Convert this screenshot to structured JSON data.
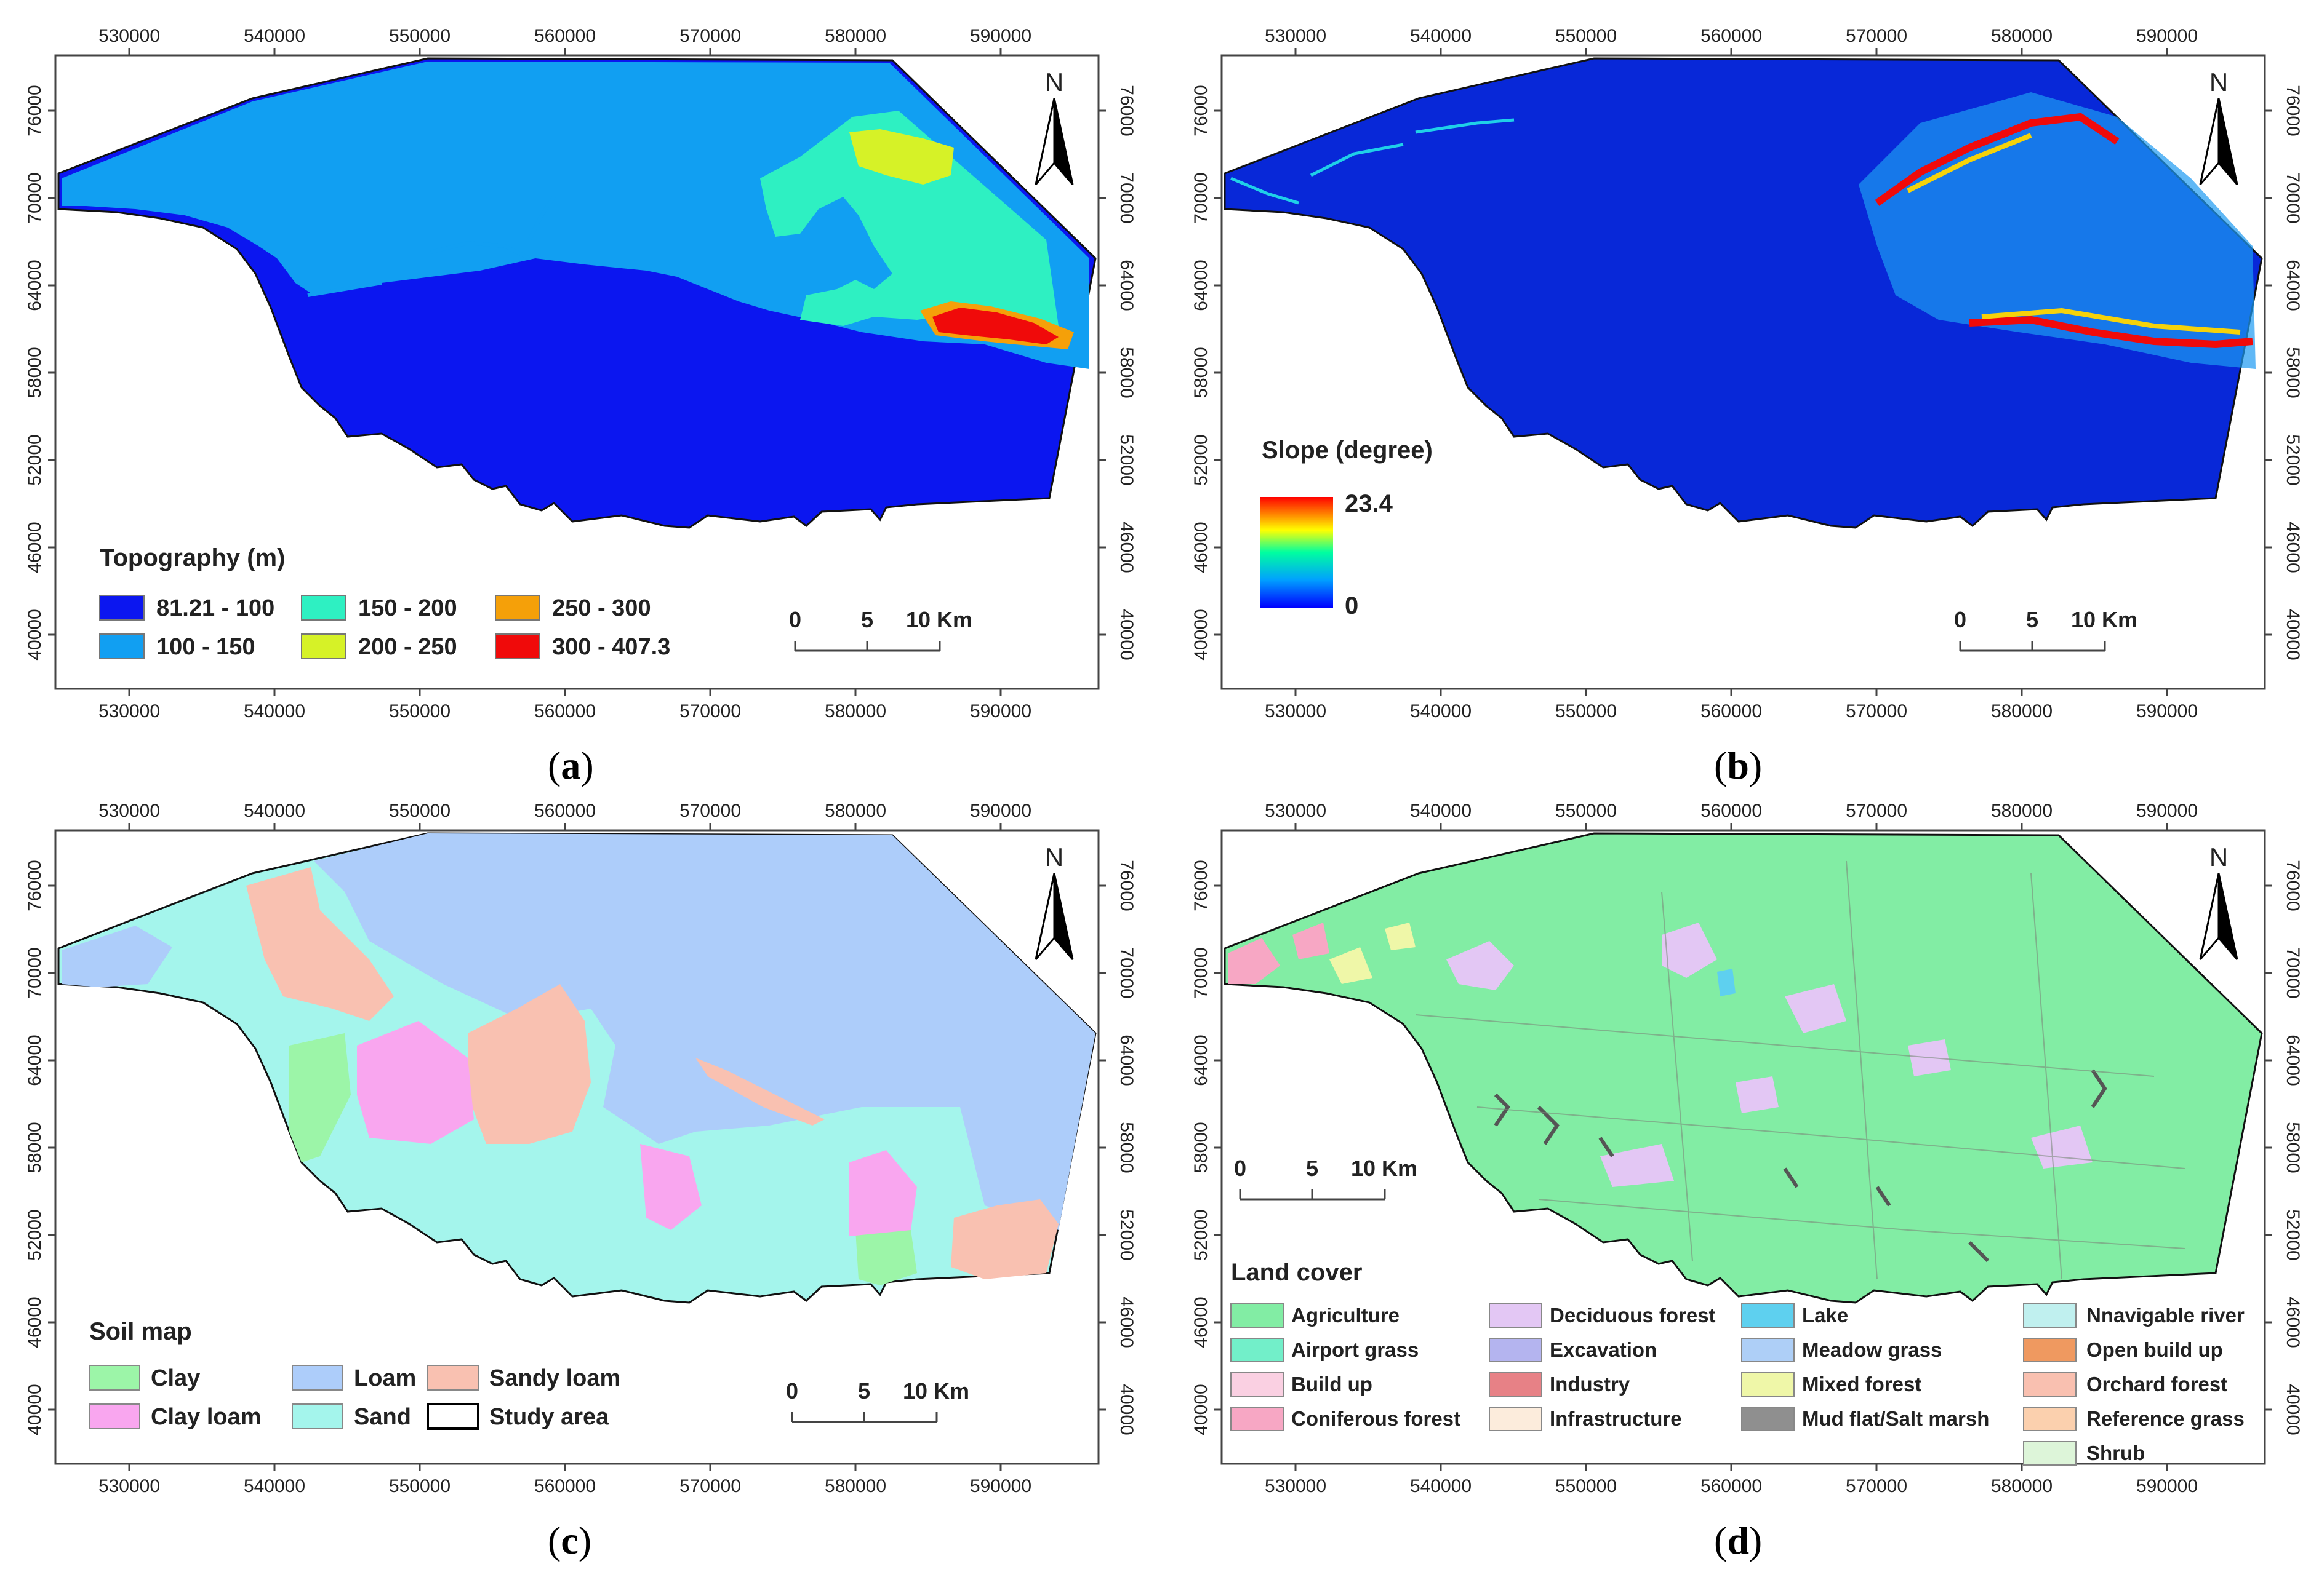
{
  "ticks": {
    "x": [
      "530000",
      "540000",
      "550000",
      "560000",
      "570000",
      "580000",
      "590000"
    ],
    "y": [
      "76000",
      "70000",
      "64000",
      "58000",
      "52000",
      "46000",
      "40000"
    ]
  },
  "north": "N",
  "scalebar": {
    "zero": "0",
    "five": "5",
    "ten": "10 Km"
  },
  "panels": {
    "a": {
      "label": "a",
      "legend_title": "Topography (m)",
      "legend": [
        {
          "label": "81.21 - 100",
          "color": "#0b16f0"
        },
        {
          "label": "100 - 150",
          "color": "#119ff2"
        },
        {
          "label": "150 - 200",
          "color": "#2ef0c2"
        },
        {
          "label": "200 - 250",
          "color": "#d6f227"
        },
        {
          "label": "250 - 300",
          "color": "#f5a009"
        },
        {
          "label": "300 - 407.3",
          "color": "#f00a0a"
        }
      ]
    },
    "b": {
      "label": "b",
      "legend_title": "Slope (degree)",
      "max": "23.4",
      "min": "0"
    },
    "c": {
      "label": "c",
      "legend_title": "Soil map",
      "legend": [
        {
          "label": "Clay",
          "color": "#9cf5a8"
        },
        {
          "label": "Clay loam",
          "color": "#f9a6ef"
        },
        {
          "label": "Loam",
          "color": "#adcdfa"
        },
        {
          "label": "Sand",
          "color": "#a4f5ec"
        },
        {
          "label": "Sandy loam",
          "color": "#f9c1b1"
        },
        {
          "label": "Study area",
          "color": "#ffffff"
        }
      ]
    },
    "d": {
      "label": "d",
      "legend_title": "Land cover",
      "legend": [
        {
          "label": "Agriculture",
          "color": "#82eda4"
        },
        {
          "label": "Airport grass",
          "color": "#72efc9"
        },
        {
          "label": "Build up",
          "color": "#fad0e2"
        },
        {
          "label": "Coniferous forest",
          "color": "#f7a7c4"
        },
        {
          "label": "Deciduous forest",
          "color": "#e3c7f4"
        },
        {
          "label": "Excavation",
          "color": "#b4b4ef"
        },
        {
          "label": "Industry",
          "color": "#e78186"
        },
        {
          "label": "Infrastructure",
          "color": "#fcecdc"
        },
        {
          "label": "Lake",
          "color": "#5ed0ef"
        },
        {
          "label": "Meadow  grass",
          "color": "#aecff7"
        },
        {
          "label": "Mixed forest",
          "color": "#eff7a8"
        },
        {
          "label": "Mud flat/Salt marsh",
          "color": "#8f8f8f"
        },
        {
          "label": "Nnavigable river",
          "color": "#c0f0ef"
        },
        {
          "label": "Open build up",
          "color": "#ef9960"
        },
        {
          "label": "Orchard  forest",
          "color": "#f9c0b0"
        },
        {
          "label": "Reference grass",
          "color": "#fbd0ae"
        },
        {
          "label": "Shrub",
          "color": "#ddf5d9"
        }
      ]
    }
  }
}
